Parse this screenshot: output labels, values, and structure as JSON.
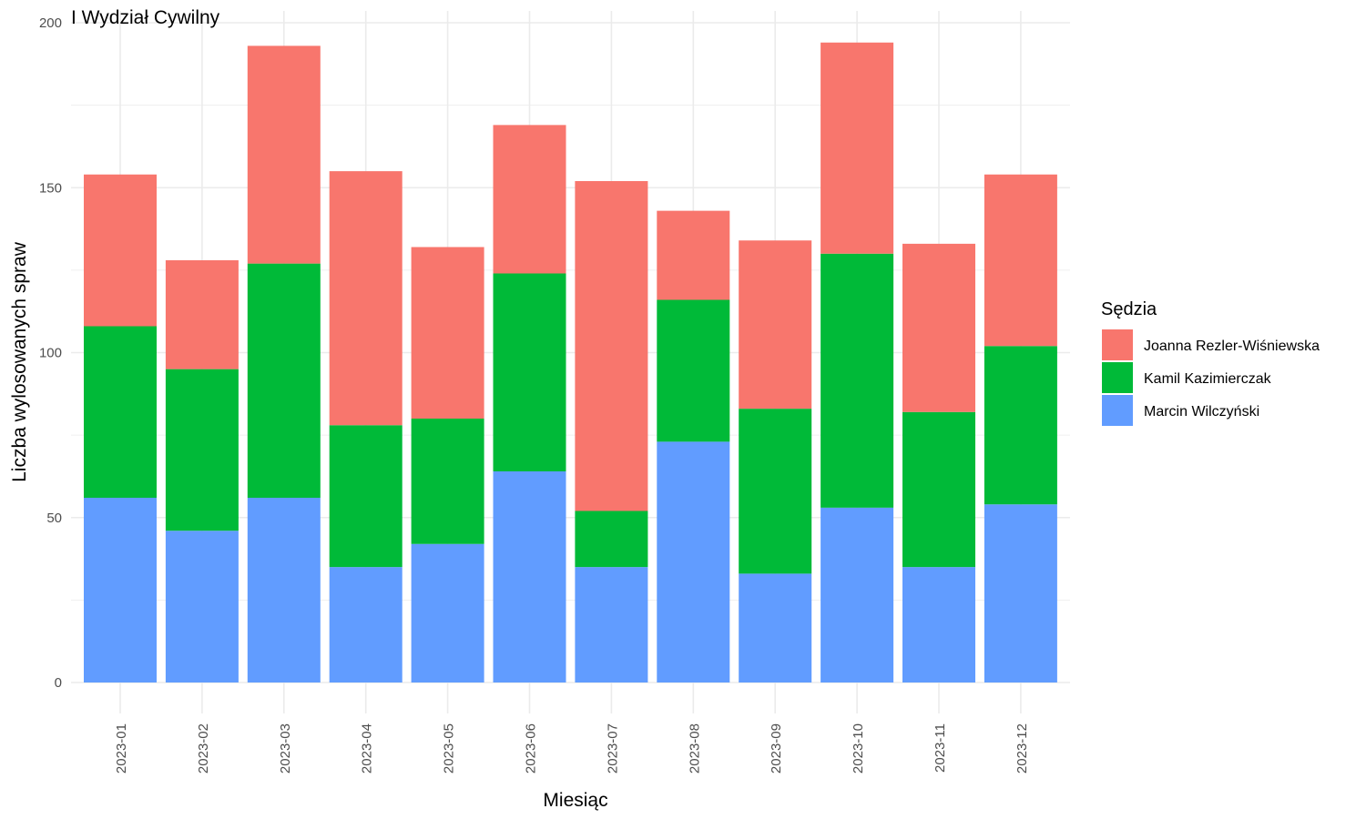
{
  "chart_data": {
    "type": "bar",
    "stacked": true,
    "title": "I Wydział Cywilny",
    "xlabel": "Miesiąc",
    "ylabel": "Liczba wylosowanych spraw",
    "ylim": [
      0,
      200
    ],
    "yticks": [
      0,
      50,
      100,
      150,
      200
    ],
    "grid": true,
    "legend_position": "right",
    "legend_title": "Sędzia",
    "categories": [
      "2023-01",
      "2023-02",
      "2023-03",
      "2023-04",
      "2023-05",
      "2023-06",
      "2023-07",
      "2023-08",
      "2023-09",
      "2023-10",
      "2023-11",
      "2023-12"
    ],
    "series": [
      {
        "name": "Marcin Wilczyński",
        "color": "#619CFF",
        "values": [
          56,
          46,
          56,
          35,
          42,
          64,
          35,
          73,
          33,
          53,
          35,
          54
        ]
      },
      {
        "name": "Kamil Kazimierczak",
        "color": "#00BA38",
        "values": [
          52,
          49,
          71,
          43,
          38,
          60,
          17,
          43,
          50,
          77,
          47,
          48
        ]
      },
      {
        "name": "Joanna Rezler-Wiśniewska",
        "color": "#F8766D",
        "values": [
          46,
          33,
          66,
          77,
          52,
          45,
          100,
          27,
          51,
          64,
          51,
          52
        ]
      }
    ],
    "legend_order": [
      "Joanna Rezler-Wiśniewska",
      "Kamil Kazimierczak",
      "Marcin Wilczyński"
    ]
  }
}
